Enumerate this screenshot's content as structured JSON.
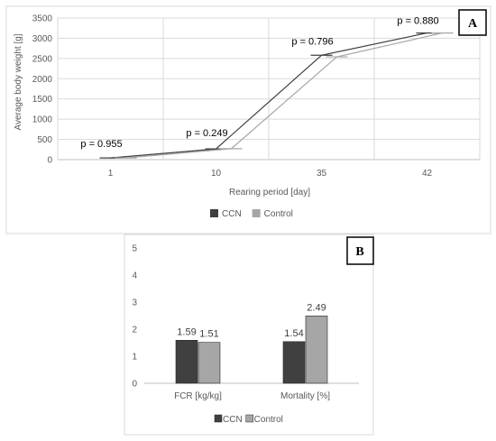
{
  "chart_data": [
    {
      "type": "line",
      "panel_label": "A",
      "title": "",
      "xlabel": "Rearing period [day]",
      "ylabel": "Average body weight [g]",
      "categories": [
        "1",
        "10",
        "35",
        "42"
      ],
      "ylim": [
        0,
        3500
      ],
      "yticks": [
        "0",
        "500",
        "1000",
        "1500",
        "2000",
        "2500",
        "3000",
        "3500"
      ],
      "grid": true,
      "legend_position": "bottom",
      "series": [
        {
          "name": "CCN",
          "values": [
            42,
            265,
            2580,
            3130
          ],
          "color": "#404040"
        },
        {
          "name": "Control",
          "values": [
            42,
            270,
            2540,
            3130
          ],
          "color": "#a6a6a6"
        }
      ],
      "annotations": [
        "p = 0.955",
        "p = 0.249",
        "p = 0.796",
        "p = 0.880"
      ]
    },
    {
      "type": "bar",
      "panel_label": "B",
      "title": "",
      "xlabel": "",
      "ylabel": "",
      "categories": [
        "FCR [kg/kg]",
        "Mortality [%]"
      ],
      "ylim": [
        0,
        5
      ],
      "yticks": [
        "0",
        "1",
        "2",
        "3",
        "4",
        "5"
      ],
      "grid": false,
      "legend_position": "bottom",
      "series": [
        {
          "name": "CCN",
          "values": [
            1.59,
            1.54
          ],
          "labels": [
            "1.59",
            "1.54"
          ],
          "color": "#404040"
        },
        {
          "name": "Control",
          "values": [
            1.51,
            2.49
          ],
          "labels": [
            "1.51",
            "2.49"
          ],
          "color": "#a6a6a6"
        }
      ]
    }
  ]
}
